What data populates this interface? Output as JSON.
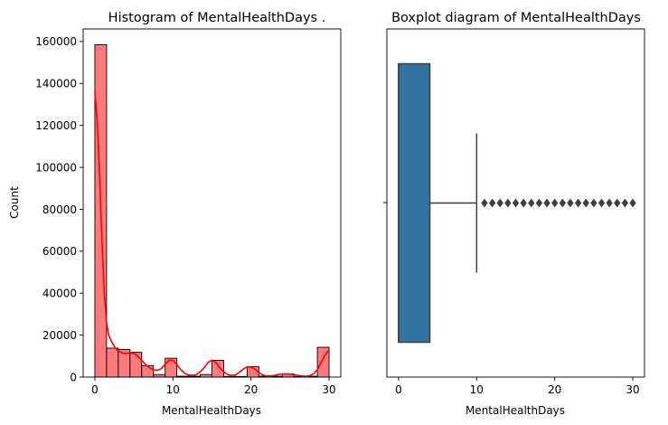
{
  "colors": {
    "hist_fill": "#ff7a7a",
    "hist_edge": "#000000",
    "kde_line": "#ff0000",
    "box_fill": "#3274a1",
    "box_line": "#3f3f3f"
  },
  "chart_data": [
    {
      "type": "histogram",
      "title": "Histogram of MentalHealthDays .",
      "xlabel": "MentalHealthDays",
      "ylabel": "Count",
      "xlim": [
        -1.5,
        31.5
      ],
      "ylim": [
        0,
        166000
      ],
      "xticks": [
        0,
        10,
        20,
        30
      ],
      "yticks": [
        0,
        20000,
        40000,
        60000,
        80000,
        100000,
        120000,
        140000,
        160000
      ],
      "bin_edges": [
        0,
        1.5,
        3,
        4.5,
        6,
        7.5,
        9,
        10.5,
        12,
        13.5,
        15,
        16.5,
        18,
        19.5,
        21,
        22.5,
        24,
        25.5,
        27,
        28.5,
        30
      ],
      "counts": [
        158500,
        13800,
        13200,
        11800,
        5500,
        1200,
        9000,
        400,
        400,
        1200,
        8000,
        300,
        300,
        5000,
        400,
        400,
        1500,
        300,
        400,
        14200
      ],
      "kde": {
        "x": [
          0,
          0.3,
          0.6,
          0.9,
          1.2,
          1.5,
          1.8,
          2.2,
          2.6,
          3,
          3.5,
          4,
          4.5,
          5,
          5.5,
          6,
          6.5,
          7,
          7.5,
          8,
          8.5,
          9,
          9.5,
          10,
          10.5,
          11,
          11.5,
          12,
          12.5,
          13,
          13.5,
          14,
          14.5,
          15,
          15.5,
          16,
          16.5,
          17,
          17.5,
          18,
          18.5,
          19,
          19.5,
          20,
          20.5,
          21,
          21.5,
          22,
          22.5,
          23,
          23.5,
          24,
          24.5,
          25,
          25.5,
          26,
          26.5,
          27,
          27.5,
          28,
          28.5,
          29,
          29.5,
          30
        ],
        "y": [
          136000,
          122000,
          97000,
          66000,
          40000,
          26000,
          19500,
          16500,
          14000,
          12500,
          11500,
          11200,
          11500,
          11300,
          10000,
          8000,
          6000,
          4500,
          3500,
          3200,
          4000,
          6000,
          8000,
          8000,
          6000,
          3500,
          1800,
          1000,
          800,
          1200,
          2500,
          4500,
          7000,
          8000,
          7000,
          4500,
          2500,
          1200,
          800,
          1000,
          2200,
          3800,
          4800,
          4800,
          3800,
          2200,
          1000,
          500,
          500,
          800,
          1200,
          1500,
          1500,
          1400,
          1100,
          800,
          500,
          400,
          600,
          1500,
          3500,
          7000,
          10500,
          13000
        ]
      }
    },
    {
      "type": "boxplot",
      "title": "Boxplot diagram of MentalHealthDays",
      "xlabel": "MentalHealthDays",
      "xlim": [
        -1.5,
        31.5
      ],
      "xticks": [
        0,
        10,
        20,
        30
      ],
      "ytick_label": "",
      "stats": {
        "q1": 0,
        "median": 0,
        "q3": 4,
        "whisker_low": 0,
        "whisker_high": 10
      },
      "outliers": [
        11,
        12,
        13,
        14,
        15,
        16,
        17,
        18,
        19,
        20,
        21,
        22,
        23,
        24,
        25,
        26,
        27,
        28,
        29,
        30
      ]
    }
  ]
}
